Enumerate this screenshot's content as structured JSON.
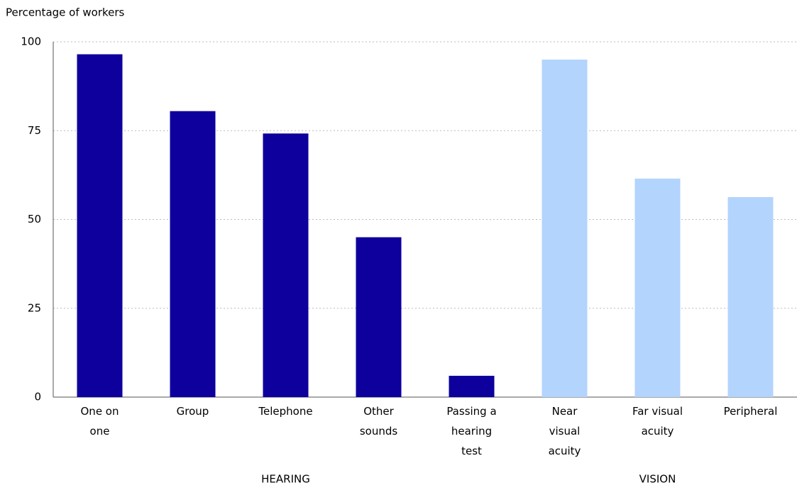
{
  "chart_data": {
    "type": "bar",
    "y_axis_label": "Percentage of workers",
    "categories": [
      "One on one",
      "Group",
      "Telephone",
      "Other sounds",
      "Passing a hearing test",
      "Near visual acuity",
      "Far visual acuity",
      "Peripheral"
    ],
    "series": [
      {
        "name": "HEARING",
        "color": "#0d009c",
        "values": [
          96.5,
          80.5,
          74.2,
          45,
          6,
          null,
          null,
          null
        ]
      },
      {
        "name": "VISION",
        "color": "#b3d4fc",
        "values": [
          null,
          null,
          null,
          null,
          null,
          95,
          61.5,
          56.3
        ]
      }
    ],
    "ylim": [
      0,
      100
    ],
    "yticks": [
      0,
      25,
      50,
      75,
      100
    ],
    "grid": true
  }
}
